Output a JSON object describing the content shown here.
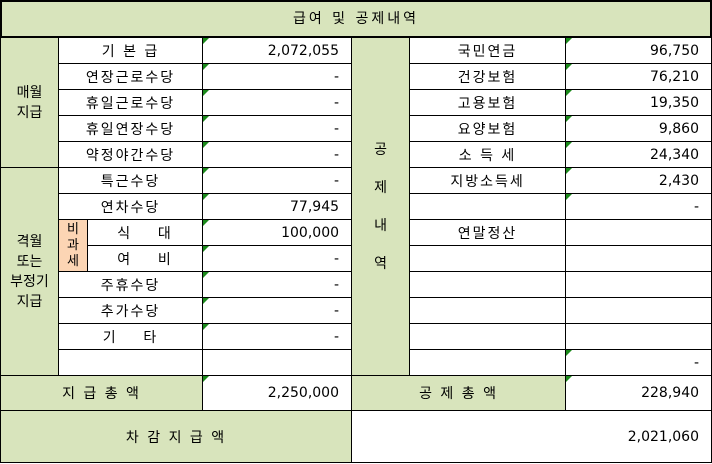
{
  "title": "급여 및 공제내역",
  "pay": {
    "category_monthly": [
      "매월",
      "지급"
    ],
    "category_irregular": [
      "격월",
      "또는",
      "부정기",
      "지급"
    ],
    "nontaxable": [
      "비",
      "과",
      "세"
    ],
    "rows": [
      {
        "label": "기 본 급",
        "value": "2,072,055"
      },
      {
        "label": "연장근로수당",
        "value": "-"
      },
      {
        "label": "휴일근로수당",
        "value": "-"
      },
      {
        "label": "휴일연장수당",
        "value": "-"
      },
      {
        "label": "약정야간수당",
        "value": "-"
      },
      {
        "label": "특근수당",
        "value": "-"
      },
      {
        "label": "연차수당",
        "value": "77,945"
      },
      {
        "label": "식    대",
        "value": "100,000"
      },
      {
        "label": "여    비",
        "value": "-"
      },
      {
        "label": "주휴수당",
        "value": "-"
      },
      {
        "label": "추가수당",
        "value": "-"
      },
      {
        "label": "기    타",
        "value": "-"
      },
      {
        "label": "",
        "value": ""
      }
    ],
    "total_label": "지 급 총 액",
    "total_value": "2,250,000"
  },
  "deduction": {
    "category": [
      "공",
      "제",
      "내",
      "역"
    ],
    "rows": [
      {
        "label": "국민연금",
        "value": "96,750"
      },
      {
        "label": "건강보험",
        "value": "76,210"
      },
      {
        "label": "고용보험",
        "value": "19,350"
      },
      {
        "label": "요양보험",
        "value": "9,860"
      },
      {
        "label": "소 득 세",
        "value": "24,340"
      },
      {
        "label": "지방소득세",
        "value": "2,430"
      },
      {
        "label": "",
        "value": "-"
      },
      {
        "label": "연말정산",
        "value": ""
      },
      {
        "label": "",
        "value": ""
      },
      {
        "label": "",
        "value": ""
      },
      {
        "label": "",
        "value": ""
      },
      {
        "label": "",
        "value": ""
      },
      {
        "label": "",
        "value": "-"
      }
    ],
    "total_label": "공 제 총 액",
    "total_value": "228,940"
  },
  "net": {
    "label": "차 감 지 급 액",
    "value": "2,021,060"
  },
  "colors": {
    "header_green": "#d8e4bc",
    "nontaxable_peach": "#fcd5b4",
    "comment_marker": "#1b8a1b"
  }
}
